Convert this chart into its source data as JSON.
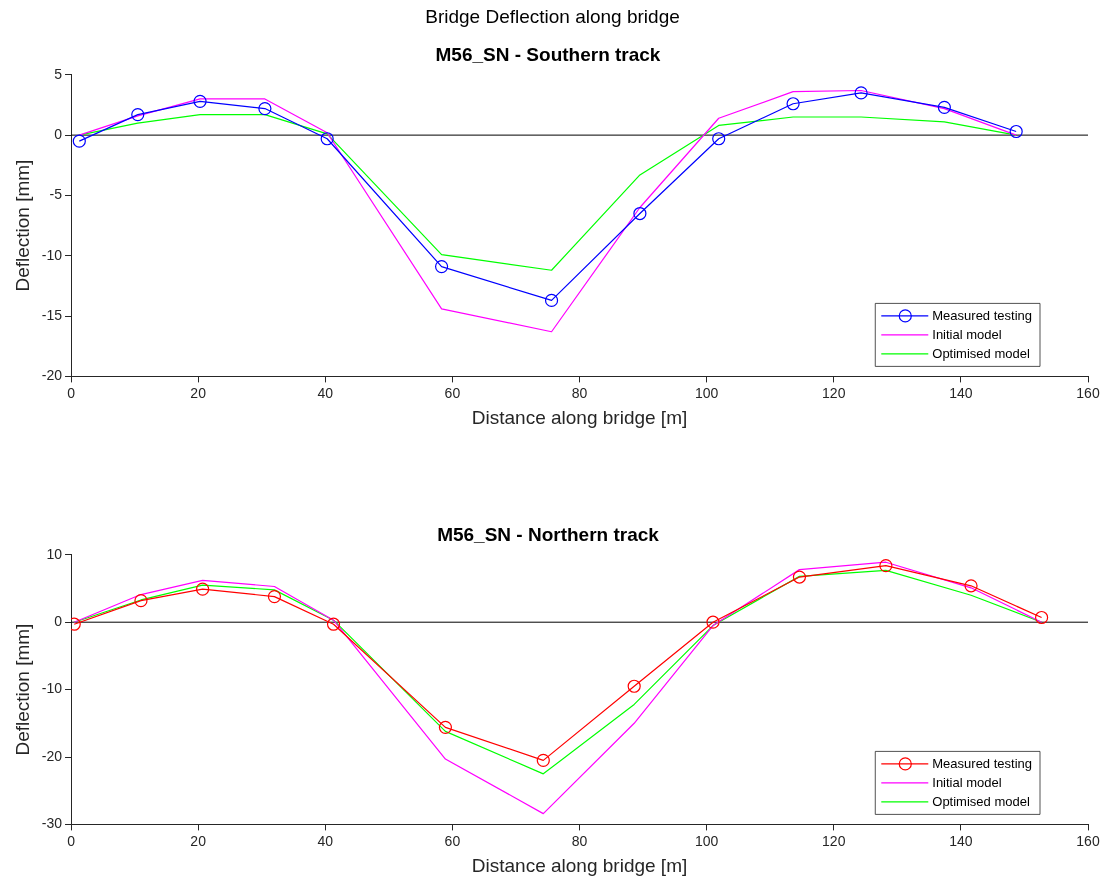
{
  "chart_data": [
    {
      "type": "line",
      "title": "M56_SN - Southern track",
      "annotations": [
        "Bridge Deflection along bridge"
      ],
      "xlabel": "Distance along bridge [m]",
      "ylabel": "Deflection [mm]",
      "xlim": [
        0,
        160
      ],
      "xticks": [
        0,
        20,
        40,
        60,
        80,
        100,
        120,
        140,
        160
      ],
      "ylim": [
        -20,
        5
      ],
      "yticks": [
        -20,
        -15,
        -10,
        -5,
        0,
        5
      ],
      "grid": false,
      "legend": "bottom right",
      "line_style": "solid",
      "x": [
        1.3,
        10.5,
        20.3,
        30.5,
        40.3,
        58.3,
        75.6,
        89.5,
        101.9,
        113.6,
        124.3,
        137.4,
        148.7
      ],
      "ref_lines": [
        {
          "axis": "y",
          "value": 0,
          "color": "#000000"
        }
      ],
      "series": [
        {
          "name": "Measured testing",
          "color": "#0000ff",
          "marker": "circle",
          "values": [
            -0.5,
            1.7,
            2.8,
            2.2,
            -0.3,
            -10.9,
            -13.7,
            -6.5,
            -0.3,
            2.6,
            3.5,
            2.3,
            0.3
          ]
        },
        {
          "name": "Initial model",
          "color": "#ff00ff",
          "marker": "none",
          "values": [
            0,
            1.6,
            3.0,
            3.0,
            0.2,
            -14.4,
            -16.3,
            -6.0,
            1.4,
            3.6,
            3.7,
            2.2,
            0
          ]
        },
        {
          "name": "Optimised model",
          "color": "#00ff00",
          "marker": "none",
          "values": [
            0,
            1.0,
            1.7,
            1.7,
            0.1,
            -9.9,
            -11.2,
            -3.3,
            0.8,
            1.5,
            1.5,
            1.1,
            0
          ]
        }
      ]
    },
    {
      "type": "line",
      "title": "M56_SN - Northern track",
      "xlabel": "Distance along bridge [m]",
      "ylabel": "Deflection [mm]",
      "xlim": [
        0,
        160
      ],
      "xticks": [
        0,
        20,
        40,
        60,
        80,
        100,
        120,
        140,
        160
      ],
      "ylim": [
        -30,
        10
      ],
      "yticks": [
        -30,
        -20,
        -10,
        0,
        10
      ],
      "grid": false,
      "legend": "bottom right",
      "line_style": "solid",
      "x": [
        0.5,
        11.0,
        20.7,
        32.0,
        41.3,
        58.9,
        74.3,
        88.6,
        101.0,
        114.6,
        128.2,
        141.6,
        152.7
      ],
      "ref_lines": [
        {
          "axis": "y",
          "value": 0,
          "color": "#000000"
        }
      ],
      "series": [
        {
          "name": "Measured testing",
          "color": "#ff0000",
          "marker": "circle",
          "values": [
            -0.3,
            3.2,
            4.9,
            3.8,
            -0.3,
            -15.6,
            -20.5,
            -9.5,
            0,
            6.7,
            8.4,
            5.4,
            0.7
          ]
        },
        {
          "name": "Initial model",
          "color": "#ff00ff",
          "marker": "none",
          "values": [
            0,
            4.1,
            6.2,
            5.3,
            0.3,
            -20.3,
            -28.4,
            -15.0,
            -0.5,
            7.8,
            8.9,
            5.1,
            0
          ]
        },
        {
          "name": "Optimised model",
          "color": "#00ff00",
          "marker": "none",
          "values": [
            0,
            3.3,
            5.5,
            4.8,
            0.3,
            -16.2,
            -22.5,
            -12.2,
            -0.5,
            6.8,
            7.7,
            4.0,
            0
          ]
        }
      ]
    }
  ]
}
